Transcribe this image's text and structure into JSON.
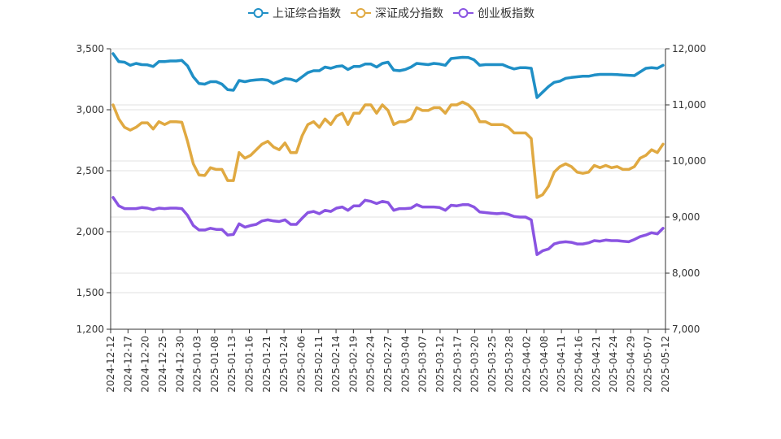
{
  "chart_data": {
    "type": "line",
    "legend_position": "top-center",
    "grid": true,
    "x_tick_labels": [
      "2024-12-12",
      "2024-12-17",
      "2024-12-20",
      "2024-12-25",
      "2024-12-30",
      "2025-01-03",
      "2025-01-08",
      "2025-01-13",
      "2025-01-16",
      "2025-01-21",
      "2025-01-24",
      "2025-02-06",
      "2025-02-11",
      "2025-02-14",
      "2025-02-19",
      "2025-02-24",
      "2025-02-27",
      "2025-03-04",
      "2025-03-07",
      "2025-03-12",
      "2025-03-17",
      "2025-03-20",
      "2025-03-25",
      "2025-03-28",
      "2025-04-02",
      "2025-04-08",
      "2025-04-11",
      "2025-04-16",
      "2025-04-21",
      "2025-04-24",
      "2025-04-29",
      "2025-05-07",
      "2025-05-12"
    ],
    "y_left": {
      "min": 1200,
      "max": 3500,
      "ticks": [
        "3,500",
        "3,000",
        "2,500",
        "2,000",
        "1,500",
        "1,200"
      ],
      "tick_values": [
        3500,
        3000,
        2500,
        2000,
        1500,
        1200
      ]
    },
    "y_right": {
      "min": 7000,
      "max": 12000,
      "ticks": [
        "12,000",
        "11,000",
        "10,000",
        "9,000",
        "8,000",
        "7,000"
      ],
      "tick_values": [
        12000,
        11000,
        10000,
        9000,
        8000,
        7000
      ]
    },
    "series": [
      {
        "name": "上证综合指数",
        "axis": "left",
        "color": "#1f8fc6",
        "values": [
          3460,
          3395,
          3390,
          3365,
          3380,
          3370,
          3368,
          3355,
          3395,
          3395,
          3400,
          3400,
          3405,
          3360,
          3270,
          3215,
          3210,
          3230,
          3230,
          3210,
          3165,
          3160,
          3240,
          3230,
          3240,
          3245,
          3248,
          3243,
          3215,
          3235,
          3255,
          3250,
          3235,
          3270,
          3305,
          3320,
          3320,
          3350,
          3340,
          3355,
          3360,
          3330,
          3355,
          3355,
          3375,
          3375,
          3350,
          3380,
          3390,
          3325,
          3320,
          3330,
          3350,
          3380,
          3375,
          3370,
          3380,
          3375,
          3365,
          3420,
          3425,
          3430,
          3428,
          3410,
          3365,
          3370,
          3370,
          3370,
          3370,
          3350,
          3335,
          3345,
          3345,
          3340,
          3100,
          3145,
          3190,
          3225,
          3235,
          3258,
          3265,
          3270,
          3275,
          3275,
          3285,
          3290,
          3290,
          3290,
          3288,
          3285,
          3283,
          3280,
          3310,
          3340,
          3345,
          3340,
          3365
        ]
      },
      {
        "name": "深证成分指数",
        "axis": "right",
        "color": "#e0a941",
        "values": [
          11000,
          10750,
          10600,
          10550,
          10600,
          10680,
          10680,
          10570,
          10700,
          10650,
          10700,
          10700,
          10690,
          10350,
          9950,
          9750,
          9740,
          9880,
          9850,
          9850,
          9650,
          9650,
          10150,
          10050,
          10100,
          10200,
          10300,
          10350,
          10250,
          10200,
          10320,
          10150,
          10150,
          10450,
          10650,
          10700,
          10600,
          10750,
          10650,
          10800,
          10850,
          10650,
          10850,
          10850,
          11000,
          11000,
          10850,
          11000,
          10900,
          10650,
          10700,
          10700,
          10750,
          10950,
          10900,
          10900,
          10950,
          10950,
          10850,
          11000,
          11000,
          11050,
          11000,
          10900,
          10700,
          10700,
          10650,
          10650,
          10650,
          10600,
          10500,
          10500,
          10500,
          10400,
          9350,
          9400,
          9550,
          9800,
          9900,
          9950,
          9900,
          9800,
          9780,
          9800,
          9920,
          9880,
          9920,
          9880,
          9900,
          9850,
          9850,
          9900,
          10050,
          10100,
          10200,
          10150,
          10300
        ]
      },
      {
        "name": "创业板指数",
        "axis": "right",
        "color": "#8a54e2",
        "values": [
          9350,
          9200,
          9150,
          9150,
          9150,
          9170,
          9160,
          9130,
          9160,
          9150,
          9160,
          9160,
          9150,
          9030,
          8850,
          8770,
          8770,
          8800,
          8780,
          8780,
          8680,
          8690,
          8880,
          8820,
          8850,
          8870,
          8930,
          8950,
          8930,
          8920,
          8950,
          8870,
          8870,
          8980,
          9080,
          9100,
          9060,
          9120,
          9100,
          9160,
          9180,
          9120,
          9200,
          9200,
          9300,
          9280,
          9240,
          9280,
          9260,
          9120,
          9150,
          9150,
          9160,
          9220,
          9180,
          9180,
          9180,
          9170,
          9120,
          9210,
          9200,
          9220,
          9220,
          9180,
          9090,
          9080,
          9070,
          9060,
          9070,
          9050,
          9010,
          9000,
          9000,
          8950,
          8330,
          8400,
          8430,
          8520,
          8550,
          8560,
          8550,
          8520,
          8520,
          8540,
          8580,
          8570,
          8590,
          8580,
          8580,
          8570,
          8560,
          8600,
          8650,
          8680,
          8720,
          8700,
          8800
        ]
      }
    ]
  }
}
